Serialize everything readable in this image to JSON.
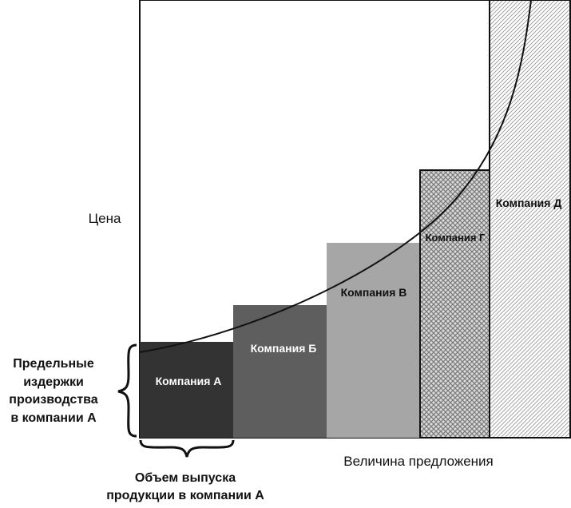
{
  "chart_data": {
    "type": "bar",
    "ylabel": "Цена",
    "xlabel": "Величина предложения",
    "bracket_y_label": [
      "Предельные",
      "издержки",
      "производства",
      "в компании А"
    ],
    "bracket_x_label": [
      "Объем выпуска",
      "продукции в компании А"
    ],
    "categories": [
      "Компания А",
      "Компания Б",
      "Компания В",
      "Компания Г",
      "Компания Д"
    ],
    "series": [
      {
        "values": [
          1,
          2,
          3,
          4,
          5
        ]
      }
    ],
    "fills": [
      "#333333",
      "#5e5e5e",
      "#a6a6a6",
      "pattern:crosshatch",
      "pattern:diagonal"
    ],
    "curve": "rising supply curve"
  }
}
